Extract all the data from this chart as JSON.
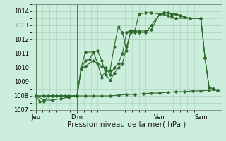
{
  "background_color": "#cceedd",
  "grid_color": "#aaccbb",
  "line_color": "#2d6a2d",
  "ylim": [
    1007,
    1014.5
  ],
  "yticks": [
    1007,
    1008,
    1009,
    1010,
    1011,
    1012,
    1013,
    1014
  ],
  "xlabel": "Pression niveau de la mer( hPa )",
  "day_labels": [
    "Jeu",
    "Dim",
    "Ven",
    "Sam"
  ],
  "day_positions": [
    0,
    30,
    90,
    120
  ],
  "tick_fontsize": 6,
  "xlabel_fontsize": 7.5,
  "series1": [
    [
      0,
      1008.0
    ],
    [
      3,
      1007.6
    ],
    [
      6,
      1007.6
    ],
    [
      9,
      1008.0
    ],
    [
      12,
      1008.0
    ],
    [
      15,
      1008.0
    ],
    [
      18,
      1008.0
    ],
    [
      21,
      1008.0
    ],
    [
      30,
      1008.0
    ],
    [
      33,
      1009.9
    ],
    [
      36,
      1010.5
    ],
    [
      39,
      1010.6
    ],
    [
      42,
      1011.1
    ],
    [
      45,
      1011.2
    ],
    [
      48,
      1010.5
    ],
    [
      51,
      1009.5
    ],
    [
      54,
      1009.1
    ],
    [
      57,
      1009.6
    ],
    [
      60,
      1010.0
    ],
    [
      63,
      1010.3
    ],
    [
      66,
      1011.5
    ],
    [
      69,
      1012.5
    ],
    [
      72,
      1012.5
    ],
    [
      75,
      1012.5
    ],
    [
      80,
      1012.5
    ],
    [
      84,
      1013.0
    ],
    [
      90,
      1013.8
    ],
    [
      93,
      1013.9
    ],
    [
      96,
      1013.9
    ],
    [
      99,
      1013.8
    ],
    [
      102,
      1013.8
    ],
    [
      105,
      1013.7
    ],
    [
      108,
      1013.6
    ],
    [
      112,
      1013.5
    ],
    [
      120,
      1013.5
    ],
    [
      123,
      1010.7
    ],
    [
      126,
      1008.6
    ],
    [
      129,
      1008.5
    ],
    [
      132,
      1008.4
    ]
  ],
  "series2": [
    [
      0,
      1008.0
    ],
    [
      6,
      1008.0
    ],
    [
      12,
      1008.0
    ],
    [
      18,
      1008.0
    ],
    [
      24,
      1008.0
    ],
    [
      30,
      1008.0
    ],
    [
      36,
      1008.0
    ],
    [
      42,
      1008.0
    ],
    [
      48,
      1008.0
    ],
    [
      54,
      1008.0
    ],
    [
      60,
      1008.05
    ],
    [
      66,
      1008.1
    ],
    [
      72,
      1008.1
    ],
    [
      78,
      1008.15
    ],
    [
      84,
      1008.2
    ],
    [
      90,
      1008.2
    ],
    [
      96,
      1008.25
    ],
    [
      102,
      1008.3
    ],
    [
      108,
      1008.3
    ],
    [
      114,
      1008.35
    ],
    [
      120,
      1008.35
    ],
    [
      126,
      1008.4
    ],
    [
      132,
      1008.4
    ]
  ],
  "series3": [
    [
      0,
      1008.0
    ],
    [
      6,
      1007.7
    ],
    [
      12,
      1007.7
    ],
    [
      18,
      1007.8
    ],
    [
      24,
      1007.9
    ],
    [
      30,
      1008.0
    ],
    [
      33,
      1009.9
    ],
    [
      36,
      1010.1
    ],
    [
      42,
      1010.5
    ],
    [
      48,
      1010.1
    ],
    [
      51,
      1010.0
    ],
    [
      54,
      1009.5
    ],
    [
      57,
      1010.0
    ],
    [
      60,
      1010.3
    ],
    [
      63,
      1011.0
    ],
    [
      66,
      1012.5
    ],
    [
      69,
      1012.65
    ],
    [
      72,
      1012.6
    ],
    [
      75,
      1012.6
    ],
    [
      80,
      1012.6
    ],
    [
      84,
      1012.7
    ],
    [
      90,
      1013.8
    ],
    [
      93,
      1013.9
    ],
    [
      96,
      1013.9
    ],
    [
      99,
      1013.8
    ],
    [
      102,
      1013.8
    ],
    [
      105,
      1013.7
    ],
    [
      108,
      1013.6
    ],
    [
      112,
      1013.5
    ],
    [
      120,
      1013.5
    ],
    [
      123,
      1010.7
    ],
    [
      126,
      1008.6
    ],
    [
      129,
      1008.5
    ],
    [
      132,
      1008.4
    ]
  ],
  "series4": [
    [
      0,
      1008.0
    ],
    [
      6,
      1008.0
    ],
    [
      12,
      1008.0
    ],
    [
      18,
      1008.0
    ],
    [
      24,
      1008.0
    ],
    [
      30,
      1008.0
    ],
    [
      33,
      1010.0
    ],
    [
      36,
      1011.1
    ],
    [
      42,
      1011.1
    ],
    [
      45,
      1010.3
    ],
    [
      48,
      1009.3
    ],
    [
      51,
      1009.8
    ],
    [
      54,
      1009.8
    ],
    [
      57,
      1011.5
    ],
    [
      60,
      1012.9
    ],
    [
      63,
      1012.5
    ],
    [
      66,
      1011.2
    ],
    [
      69,
      1012.6
    ],
    [
      72,
      1012.6
    ],
    [
      75,
      1013.8
    ],
    [
      80,
      1013.9
    ],
    [
      84,
      1013.9
    ],
    [
      90,
      1013.8
    ],
    [
      93,
      1013.8
    ],
    [
      96,
      1013.7
    ],
    [
      99,
      1013.6
    ],
    [
      102,
      1013.5
    ],
    [
      112,
      1013.5
    ],
    [
      120,
      1013.5
    ],
    [
      123,
      1010.7
    ],
    [
      126,
      1008.6
    ],
    [
      129,
      1008.5
    ],
    [
      132,
      1008.4
    ]
  ],
  "xlim": [
    -3,
    135
  ],
  "vline_positions": [
    0,
    30,
    90,
    120
  ]
}
